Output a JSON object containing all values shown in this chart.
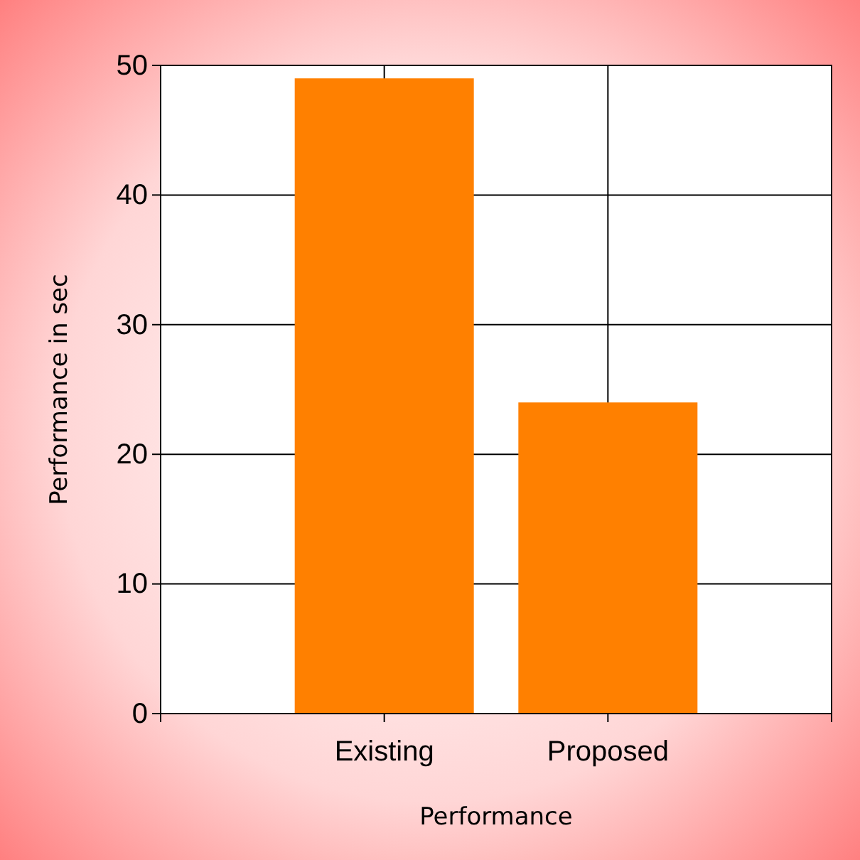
{
  "chart_data": {
    "type": "bar",
    "xlabel": "Performance",
    "ylabel": "Performance in sec",
    "categories": [
      "Existing",
      "Proposed"
    ],
    "values": [
      49,
      24
    ],
    "color": "#ff8000",
    "ylim": [
      0,
      50
    ],
    "yticks": [
      0,
      10,
      20,
      30,
      40,
      50
    ],
    "grid": true
  }
}
